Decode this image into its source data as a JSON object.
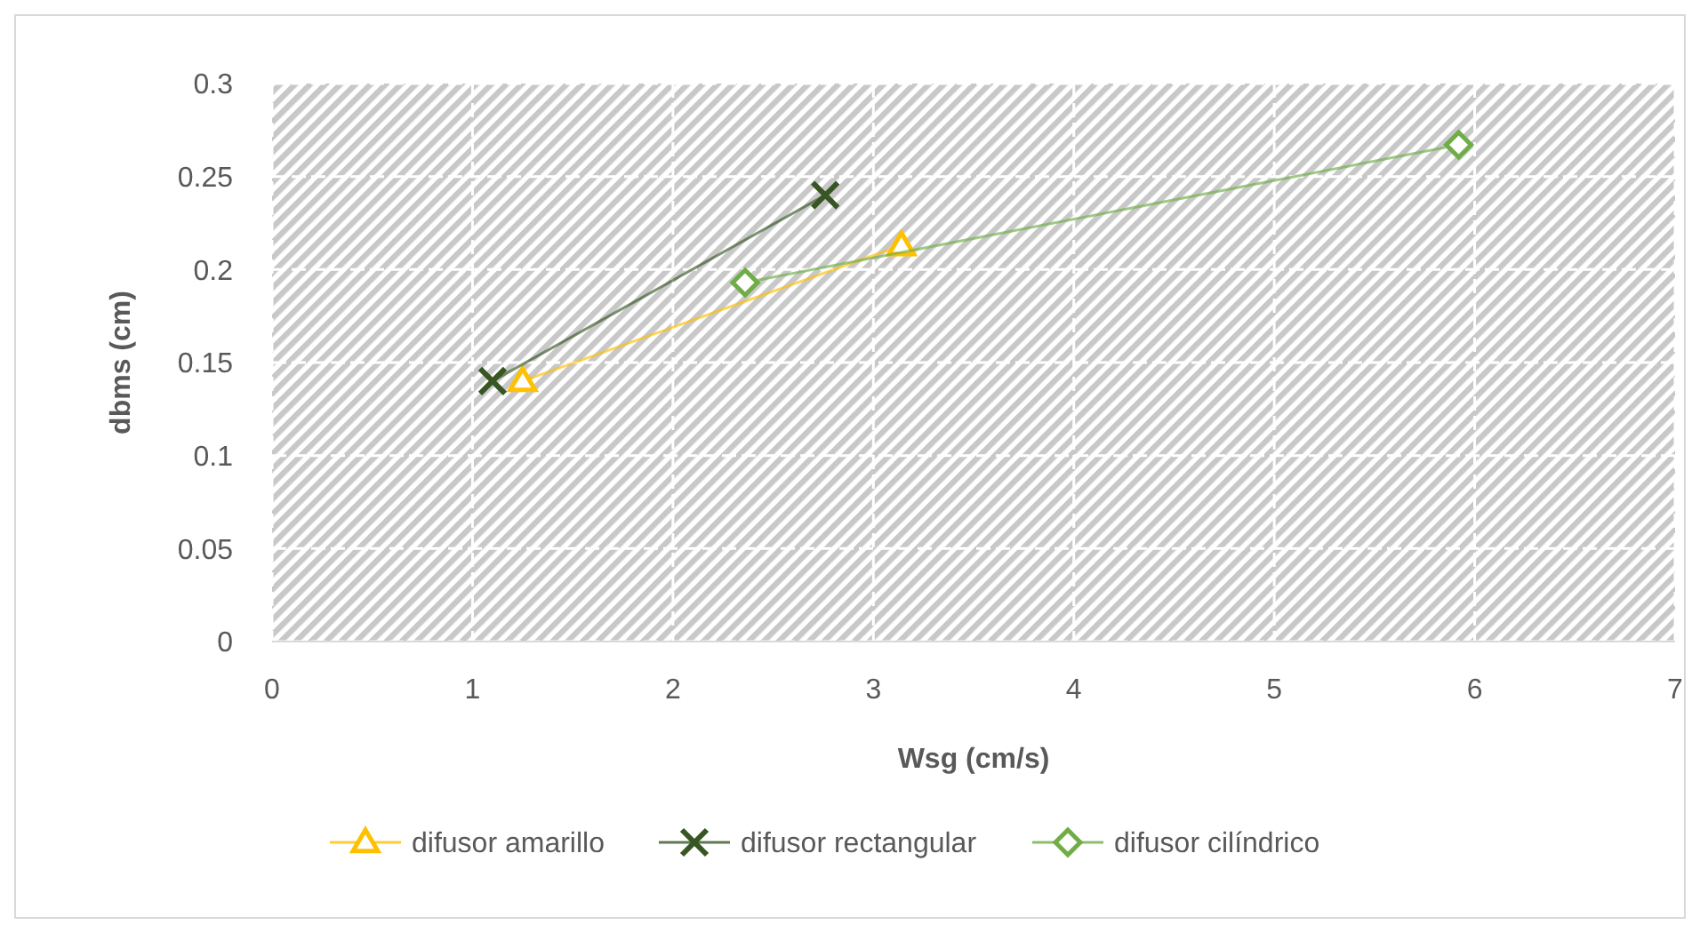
{
  "chart_data": {
    "type": "line",
    "xlabel": "Wsg (cm/s)",
    "ylabel": "dbms (cm)",
    "xlim": [
      0,
      7
    ],
    "xticks": [
      0,
      1,
      2,
      3,
      4,
      5,
      6,
      7
    ],
    "ylim": [
      0,
      0.3
    ],
    "yticks": [
      0,
      0.05,
      0.1,
      0.15,
      0.2,
      0.25,
      0.3
    ],
    "grid": true,
    "legend": "bottom",
    "line_style": "solid",
    "series": [
      {
        "name": "difusor amarillo",
        "color": "#ffc000",
        "marker": "triangle",
        "x": [
          1.25,
          3.14
        ],
        "values": [
          0.14,
          0.213
        ]
      },
      {
        "name": "difusor rectangular",
        "color": "#375623",
        "marker": "cross",
        "x": [
          1.1,
          2.76
        ],
        "values": [
          0.14,
          0.24
        ]
      },
      {
        "name": "difusor cilíndrico",
        "color": "#70ad47",
        "marker": "diamond",
        "x": [
          2.36,
          5.92
        ],
        "values": [
          0.193,
          0.267
        ]
      }
    ]
  }
}
